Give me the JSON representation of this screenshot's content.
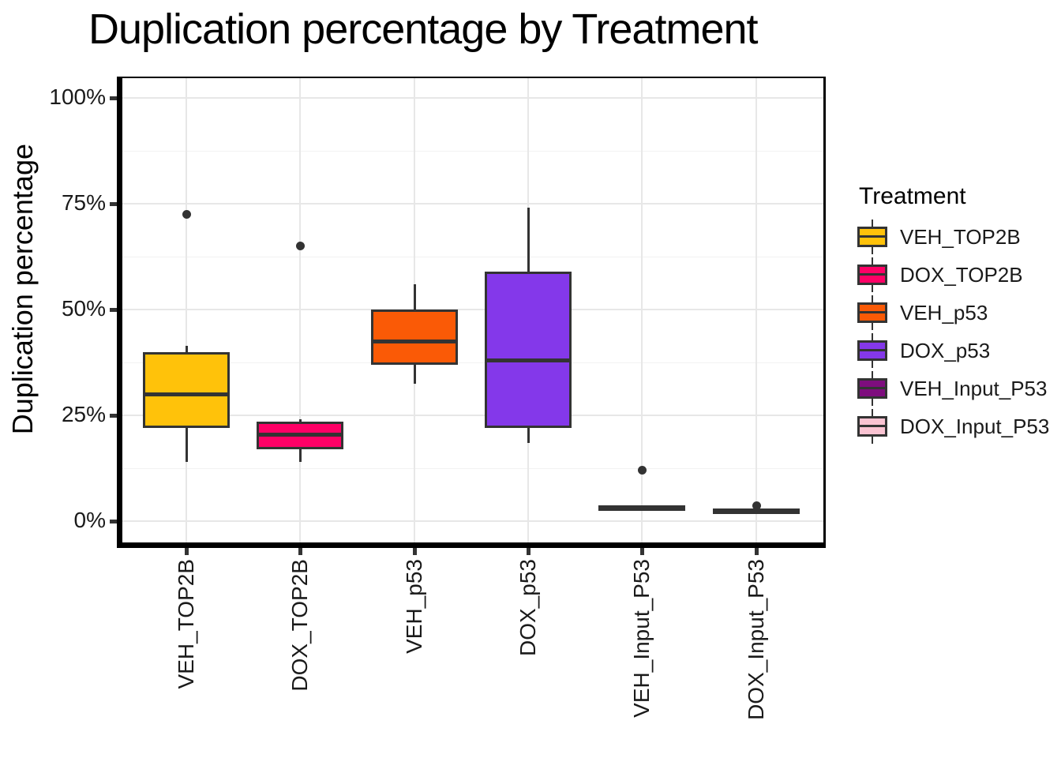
{
  "chart_data": {
    "type": "boxplot",
    "title": "Duplication percentage by Treatment",
    "ylabel": "Duplication percentage",
    "xlabel": "",
    "legend_title": "Treatment",
    "legend_position": "right",
    "grid": true,
    "ylim": [
      0,
      100
    ],
    "y_breaks": [
      0,
      25,
      50,
      75,
      100
    ],
    "y_tick_labels": [
      "0%",
      "25%",
      "50%",
      "75%",
      "100%"
    ],
    "y_minor_breaks": [
      12.5,
      37.5,
      62.5,
      87.5
    ],
    "categories": [
      "VEH_TOP2B",
      "DOX_TOP2B",
      "VEH_p53",
      "DOX_p53",
      "VEH_Input_P53",
      "DOX_Input_P53"
    ],
    "series": [
      {
        "name": "VEH_TOP2B",
        "color": "#FFC20A",
        "whisker_low": 14,
        "q1": 22,
        "median": 30,
        "q3": 40,
        "whisker_high": 41.5,
        "outliers": [
          72.5
        ]
      },
      {
        "name": "DOX_TOP2B",
        "color": "#FF0066",
        "whisker_low": 14,
        "q1": 17,
        "median": 20.5,
        "q3": 23.5,
        "whisker_high": 24,
        "outliers": [
          65
        ]
      },
      {
        "name": "VEH_p53",
        "color": "#FA5A06",
        "whisker_low": 32.5,
        "q1": 37,
        "median": 42.5,
        "q3": 50,
        "whisker_high": 56,
        "outliers": []
      },
      {
        "name": "DOX_p53",
        "color": "#8438EA",
        "whisker_low": 18.5,
        "q1": 22,
        "median": 38,
        "q3": 59,
        "whisker_high": 74,
        "outliers": []
      },
      {
        "name": "VEH_Input_P53",
        "color": "#7E0D7E",
        "whisker_low": 2.5,
        "q1": 3.0,
        "median": 3.3,
        "q3": 3.6,
        "whisker_high": 3.8,
        "outliers": [
          12
        ]
      },
      {
        "name": "DOX_Input_P53",
        "color": "#FAC3D2",
        "whisker_low": 2.2,
        "q1": 2.3,
        "median": 2.5,
        "q3": 2.8,
        "whisker_high": 3.0,
        "outliers": [
          3.7
        ]
      }
    ]
  },
  "colors": {
    "axis_line": "#000000",
    "box_border": "#333333",
    "grid_major": "#e7e7e7",
    "grid_minor": "#f2f2f2",
    "tick_text": "#1a1a1a"
  }
}
